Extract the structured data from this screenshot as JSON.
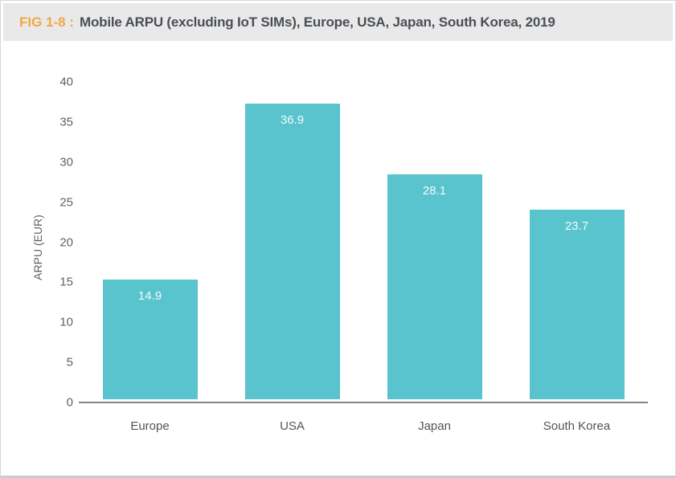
{
  "header": {
    "fig_label": "FIG 1-8 :",
    "title": "Mobile ARPU (excluding IoT SIMs), Europe, USA, Japan, South Korea, 2019"
  },
  "colors": {
    "bar": "#59C4CE",
    "accent_orange": "#F3A643",
    "header_bg": "#E9E9EA",
    "title_text": "#4A4F55",
    "axis_text": "#5D6369",
    "axis_line": "#848484",
    "value_label": "#F2FAFA"
  },
  "chart_data": {
    "type": "bar",
    "title": "Mobile ARPU (excluding IoT SIMs), Europe, USA, Japan, South Korea, 2019",
    "categories": [
      "Europe",
      "USA",
      "Japan",
      "South Korea"
    ],
    "values": [
      14.9,
      36.9,
      28.1,
      23.7
    ],
    "value_labels": [
      "14.9",
      "36.9",
      "28.1",
      "23.7"
    ],
    "xlabel": "",
    "ylabel": "ARPU (EUR)",
    "ylim": [
      0,
      40
    ],
    "yticks": [
      0,
      5,
      10,
      15,
      20,
      25,
      30,
      35,
      40
    ],
    "grid": false,
    "legend": "none",
    "bar_color": "#59C4CE"
  }
}
